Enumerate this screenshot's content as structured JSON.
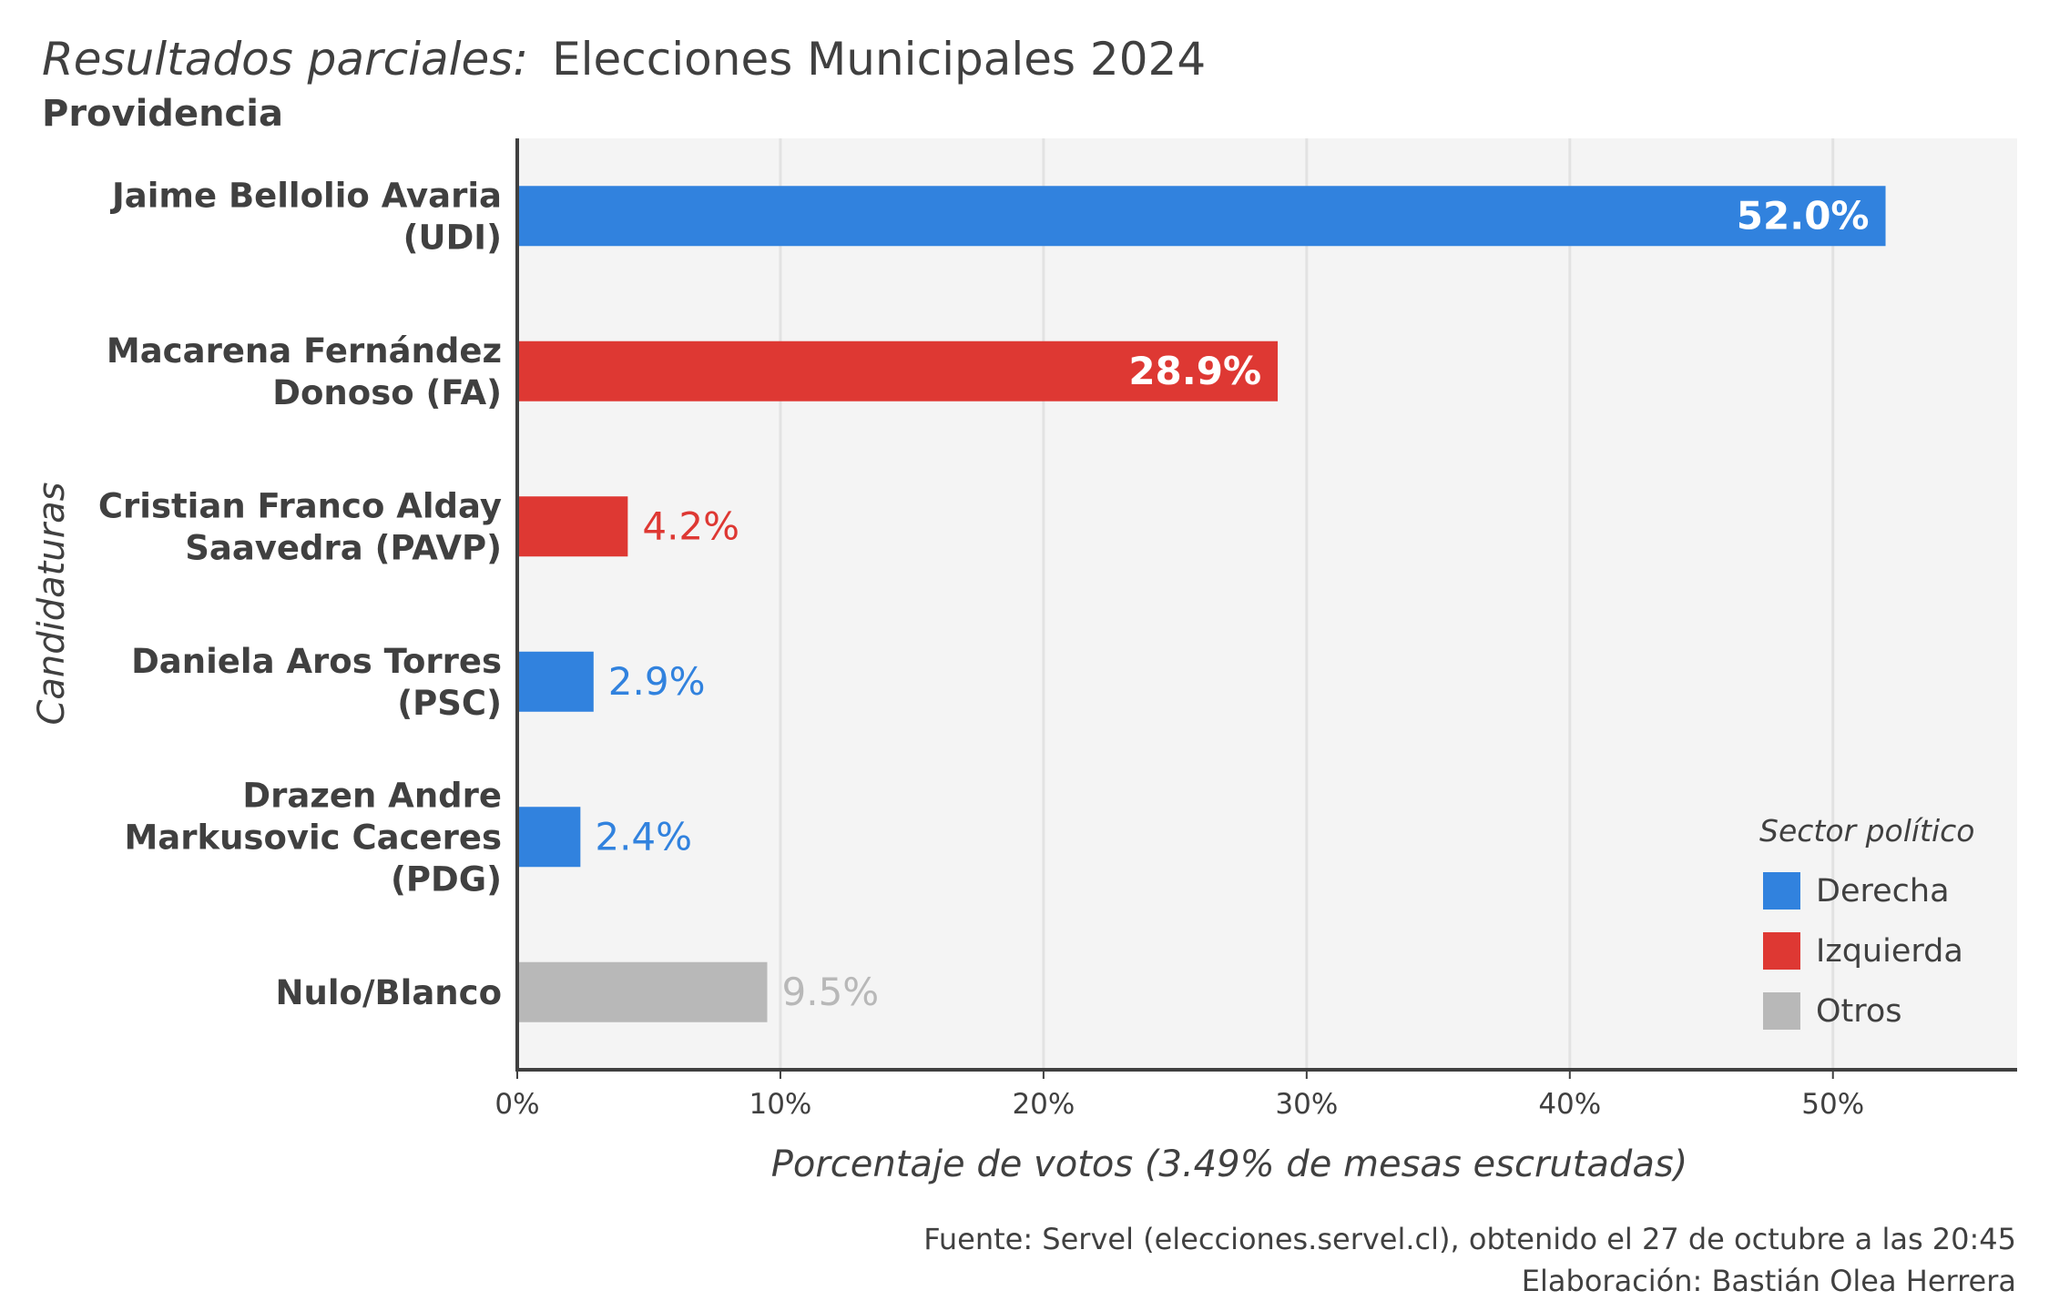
{
  "header": {
    "title_prefix": "Resultados parciales:",
    "title_main": "Elecciones Municipales 2024",
    "subtitle": "Providencia"
  },
  "chart_data": {
    "type": "bar",
    "orientation": "horizontal",
    "categories": [
      [
        "Jaime Bellolio Avaria",
        "(UDI)"
      ],
      [
        "Macarena Fernández",
        "Donoso (FA)"
      ],
      [
        "Cristian Franco Alday",
        "Saavedra (PAVP)"
      ],
      [
        "Daniela Aros Torres",
        "(PSC)"
      ],
      [
        "Drazen Andre",
        "Markusovic Caceres",
        "(PDG)"
      ],
      [
        "Nulo/Blanco"
      ]
    ],
    "values": [
      52.0,
      28.9,
      4.2,
      2.9,
      2.4,
      9.5
    ],
    "labels": [
      "52.0%",
      "28.9%",
      "4.2%",
      "2.9%",
      "2.4%",
      "9.5%"
    ],
    "sectors": [
      "Derecha",
      "Izquierda",
      "Izquierda",
      "Derecha",
      "Derecha",
      "Otros"
    ],
    "xlabel": "Porcentaje de votos (3.49% de mesas escrutadas)",
    "ylabel": "Candidaturas",
    "xlim": [
      0,
      57
    ],
    "xticks": [
      0,
      10,
      20,
      30,
      40,
      50
    ],
    "xtick_labels": [
      "0%",
      "10%",
      "20%",
      "30%",
      "40%",
      "50%"
    ],
    "grid": true,
    "legend": {
      "title": "Sector político",
      "position": "bottom-right",
      "items": [
        {
          "name": "Derecha",
          "color": "#3182DE"
        },
        {
          "name": "Izquierda",
          "color": "#DE3833"
        },
        {
          "name": "Otros",
          "color": "#B8B8B8"
        }
      ]
    }
  },
  "footer": {
    "source": "Fuente: Servel (elecciones.servel.cl), obtenido el 27 de octubre a las 20:45",
    "credit": "Elaboración: Bastián Olea Herrera"
  }
}
